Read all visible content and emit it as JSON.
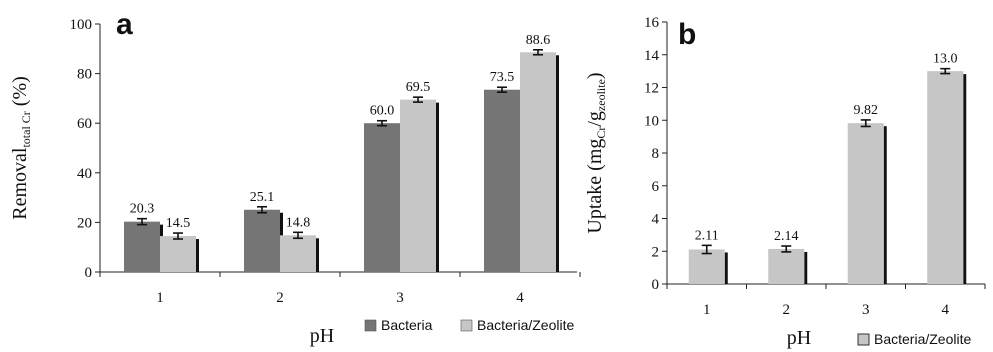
{
  "chart_data": [
    {
      "type": "bar",
      "panel_label": "a",
      "categories": [
        "1",
        "2",
        "3",
        "4"
      ],
      "series": [
        {
          "name": "Bacteria",
          "values": [
            20.3,
            25.1,
            60.0,
            73.5
          ],
          "labels": [
            "20.3",
            "25.1",
            "60.0",
            "73.5"
          ],
          "errors": [
            1.2,
            1.2,
            1.0,
            1.0
          ],
          "color": "#757575"
        },
        {
          "name": "Bacteria/Zeolite",
          "values": [
            14.5,
            14.8,
            69.5,
            88.6
          ],
          "labels": [
            "14.5",
            "14.8",
            "69.5",
            "88.6"
          ],
          "errors": [
            1.2,
            1.2,
            1.0,
            1.0
          ],
          "color": "#c6c6c6"
        }
      ],
      "ylim": [
        0,
        100
      ],
      "yticks": [
        "0",
        "20",
        "40",
        "60",
        "80",
        "100"
      ],
      "ylabel": {
        "main": "Removal",
        "sub": "total Cr",
        "unit": "(%)"
      },
      "xlabel": "pH",
      "legend": "bottom"
    },
    {
      "type": "bar",
      "panel_label": "b",
      "categories": [
        "1",
        "2",
        "3",
        "4"
      ],
      "series": [
        {
          "name": "Bacteria/Zeolite",
          "values": [
            2.11,
            2.14,
            9.82,
            13.0
          ],
          "labels": [
            "2.11",
            "2.14",
            "9.82",
            "13.0"
          ],
          "errors": [
            0.25,
            0.18,
            0.2,
            0.15
          ],
          "color": "#c6c6c6"
        }
      ],
      "ylim": [
        0,
        16
      ],
      "yticks": [
        "0",
        "2",
        "4",
        "6",
        "8",
        "10",
        "12",
        "14",
        "16"
      ],
      "ylabel": {
        "main": "Uptake (mg",
        "sub1": "Cr",
        "mid": "/g",
        "sub2": "zeolite",
        "end": ")"
      },
      "xlabel": "pH",
      "legend": "bottom-right"
    }
  ]
}
